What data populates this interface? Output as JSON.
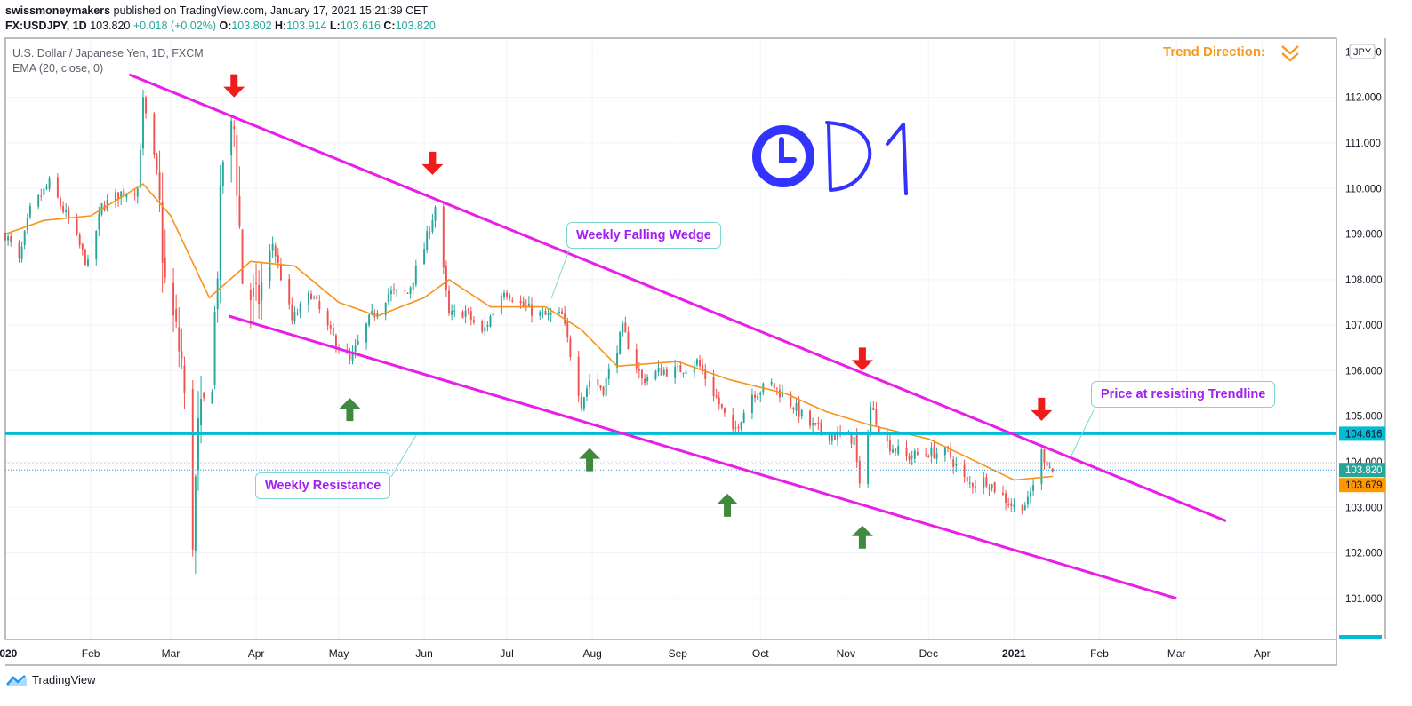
{
  "header": {
    "publisher": "swissmoneymakers",
    "published_text": " published on TradingView.com, January 17, 2021 15:21:39 CET",
    "symbol": "FX:USDJPY, 1D",
    "last": "103.820",
    "change": "+0.018 (+0.02%)",
    "o_label": "O:",
    "o": "103.802",
    "h_label": "H:",
    "h": "103.914",
    "l_label": "L:",
    "l": "103.616",
    "c_label": "C:",
    "c": "103.820"
  },
  "legend": {
    "instrument": "U.S. Dollar / Japanese Yen, 1D, FXCM",
    "indicator": "EMA (20, close, 0)"
  },
  "currency_label": "JPY",
  "trend_direction": "Trend Direction:",
  "callouts": {
    "wedge": "Weekly Falling Wedge",
    "resistance": "Weekly Resistance",
    "price_trendline": "Price at resisting Trendline"
  },
  "price_tags": {
    "resistance": "104.616",
    "last": "103.820",
    "ema": "103.679"
  },
  "footer": {
    "brand": "TradingView"
  },
  "colors": {
    "up": "#26a69a",
    "down": "#ef5350",
    "ema": "#f7931a",
    "trendline": "#e91ee9",
    "resistance": "#00bcd4",
    "arrow_down": "#f01c1c",
    "arrow_up": "#3f8a3f",
    "clock": "#3333ff"
  },
  "chart_data": {
    "type": "candlestick",
    "title": "U.S. Dollar / Japanese Yen, 1D, FXCM",
    "y_ticks": [
      101,
      102,
      103,
      104,
      105,
      106,
      107,
      108,
      109,
      110,
      111,
      112,
      113
    ],
    "ylim": [
      100.1,
      113.3
    ],
    "x_ticks": [
      "2020",
      "Feb",
      "Mar",
      "Apr",
      "May",
      "Jun",
      "Jul",
      "Aug",
      "Sep",
      "Oct",
      "Nov",
      "Dec",
      "2021",
      "Feb",
      "Mar",
      "Apr"
    ],
    "x_start": "2020-01-01",
    "x_end": "2021-04-28",
    "close_path": [
      [
        "2020-01-01",
        109.0
      ],
      [
        "2020-01-06",
        108.4
      ],
      [
        "2020-01-10",
        109.5
      ],
      [
        "2020-01-17",
        110.1
      ],
      [
        "2020-01-24",
        109.3
      ],
      [
        "2020-01-31",
        108.3
      ],
      [
        "2020-02-05",
        109.6
      ],
      [
        "2020-02-12",
        109.9
      ],
      [
        "2020-02-18",
        110.0
      ],
      [
        "2020-02-20",
        111.9
      ],
      [
        "2020-02-25",
        110.3
      ],
      [
        "2020-02-28",
        107.9
      ],
      [
        "2020-03-05",
        106.2
      ],
      [
        "2020-03-09",
        102.4
      ],
      [
        "2020-03-11",
        104.6
      ],
      [
        "2020-03-16",
        106.0
      ],
      [
        "2020-03-20",
        110.7
      ],
      [
        "2020-03-24",
        111.3
      ],
      [
        "2020-03-27",
        108.0
      ],
      [
        "2020-04-01",
        107.4
      ],
      [
        "2020-04-07",
        108.8
      ],
      [
        "2020-04-14",
        107.1
      ],
      [
        "2020-04-21",
        107.7
      ],
      [
        "2020-04-28",
        106.8
      ],
      [
        "2020-05-05",
        106.2
      ],
      [
        "2020-05-12",
        107.1
      ],
      [
        "2020-05-19",
        107.7
      ],
      [
        "2020-05-26",
        107.7
      ],
      [
        "2020-06-01",
        108.7
      ],
      [
        "2020-06-05",
        109.6
      ],
      [
        "2020-06-10",
        107.2
      ],
      [
        "2020-06-16",
        107.3
      ],
      [
        "2020-06-22",
        106.8
      ],
      [
        "2020-06-30",
        107.8
      ],
      [
        "2020-07-07",
        107.4
      ],
      [
        "2020-07-14",
        107.2
      ],
      [
        "2020-07-21",
        107.2
      ],
      [
        "2020-07-28",
        105.3
      ],
      [
        "2020-07-31",
        105.8
      ],
      [
        "2020-08-05",
        105.6
      ],
      [
        "2020-08-12",
        106.9
      ],
      [
        "2020-08-19",
        105.8
      ],
      [
        "2020-08-26",
        106.0
      ],
      [
        "2020-09-01",
        106.0
      ],
      [
        "2020-09-08",
        106.2
      ],
      [
        "2020-09-15",
        105.4
      ],
      [
        "2020-09-21",
        104.6
      ],
      [
        "2020-09-28",
        105.5
      ],
      [
        "2020-10-05",
        105.7
      ],
      [
        "2020-10-12",
        105.3
      ],
      [
        "2020-10-19",
        104.8
      ],
      [
        "2020-10-26",
        104.6
      ],
      [
        "2020-11-04",
        104.5
      ],
      [
        "2020-11-06",
        103.4
      ],
      [
        "2020-11-10",
        105.2
      ],
      [
        "2020-11-16",
        104.4
      ],
      [
        "2020-11-23",
        104.1
      ],
      [
        "2020-12-01",
        104.2
      ],
      [
        "2020-12-08",
        104.2
      ],
      [
        "2020-12-15",
        103.5
      ],
      [
        "2020-12-22",
        103.6
      ],
      [
        "2021-01-01",
        103.0
      ],
      [
        "2021-01-06",
        103.1
      ],
      [
        "2021-01-11",
        104.2
      ],
      [
        "2021-01-15",
        103.8
      ]
    ],
    "ema_path": [
      [
        "2020-01-01",
        109.0
      ],
      [
        "2020-01-15",
        109.3
      ],
      [
        "2020-02-01",
        109.4
      ],
      [
        "2020-02-20",
        110.1
      ],
      [
        "2020-03-01",
        109.4
      ],
      [
        "2020-03-15",
        107.6
      ],
      [
        "2020-03-30",
        108.4
      ],
      [
        "2020-04-15",
        108.3
      ],
      [
        "2020-05-01",
        107.5
      ],
      [
        "2020-05-15",
        107.2
      ],
      [
        "2020-06-01",
        107.6
      ],
      [
        "2020-06-10",
        108.0
      ],
      [
        "2020-06-25",
        107.4
      ],
      [
        "2020-07-15",
        107.4
      ],
      [
        "2020-07-28",
        106.9
      ],
      [
        "2020-08-10",
        106.1
      ],
      [
        "2020-09-01",
        106.2
      ],
      [
        "2020-09-20",
        105.8
      ],
      [
        "2020-10-10",
        105.5
      ],
      [
        "2020-10-25",
        105.1
      ],
      [
        "2020-11-10",
        104.8
      ],
      [
        "2020-12-01",
        104.5
      ],
      [
        "2020-12-15",
        104.1
      ],
      [
        "2021-01-01",
        103.6
      ],
      [
        "2021-01-15",
        103.679
      ]
    ],
    "resistance_level": 104.616,
    "last_price": 103.82,
    "ema_last": 103.679,
    "upper_trendline": [
      [
        "2020-02-15",
        112.5
      ],
      [
        "2021-03-19",
        102.7
      ]
    ],
    "lower_trendline": [
      [
        "2020-03-22",
        107.2
      ],
      [
        "2021-03-01",
        101.0
      ]
    ],
    "arrows_down": [
      [
        "2020-03-24",
        112.0
      ],
      [
        "2020-06-04",
        110.3
      ],
      [
        "2020-11-07",
        106.0
      ],
      [
        "2021-01-11",
        104.9
      ]
    ],
    "arrows_up": [
      [
        "2020-05-05",
        105.4
      ],
      [
        "2020-07-31",
        104.3
      ],
      [
        "2020-09-19",
        103.3
      ],
      [
        "2020-11-07",
        102.6
      ]
    ]
  }
}
